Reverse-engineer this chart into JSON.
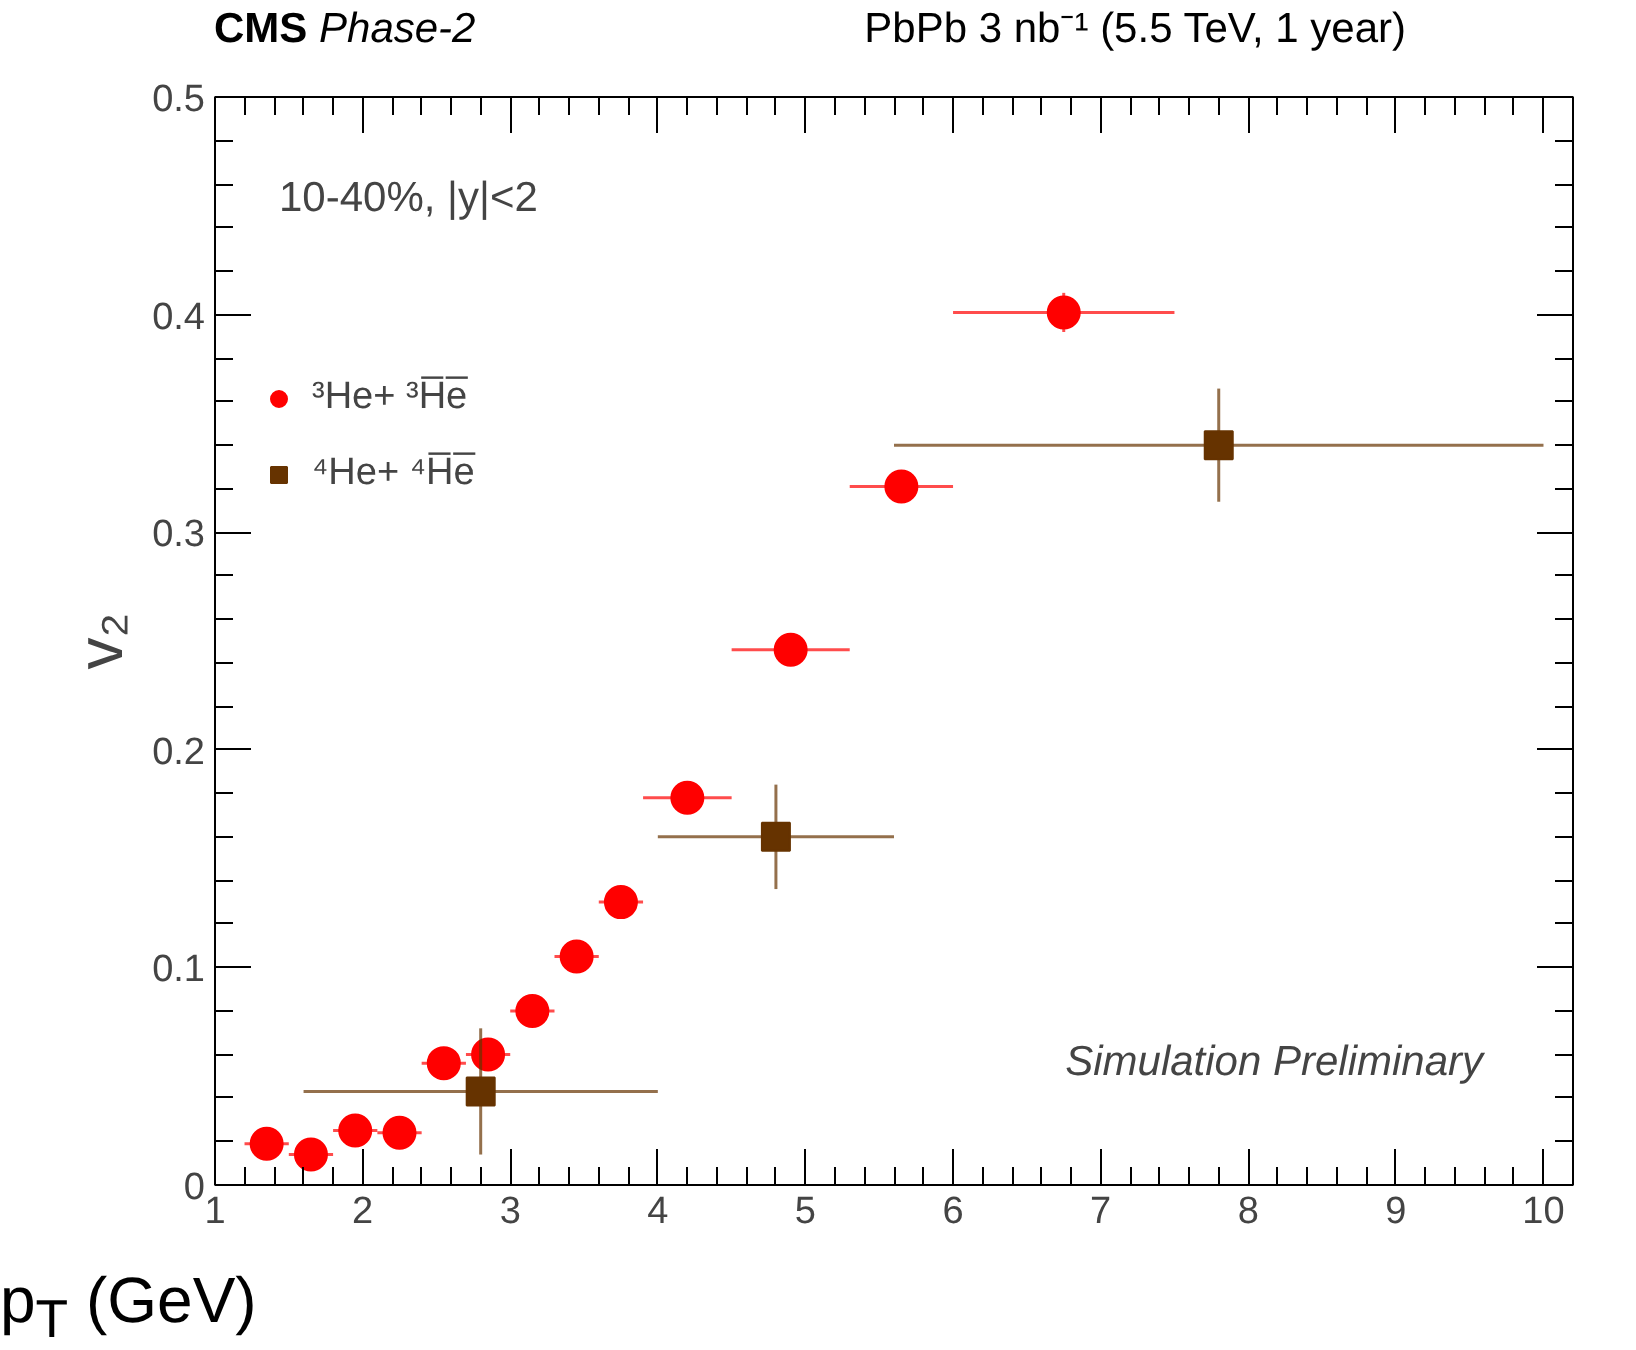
{
  "chart_data": {
    "type": "scatter",
    "title": "CMS Phase-2",
    "subtitle": "PbPb 3 nb⁻¹ (5.5 TeV, 1 year)",
    "xlabel": "p$_{T}$ (GeV)",
    "ylabel": "v₂",
    "annotations": [
      "10-40%, |y|<2",
      "Simulation Preliminary"
    ],
    "xlim": [
      1,
      10.2
    ],
    "ylim": [
      0,
      0.5
    ],
    "xticks": [
      1,
      2,
      3,
      4,
      5,
      6,
      7,
      8,
      9,
      10
    ],
    "yticks": [
      0,
      0.1,
      0.2,
      0.3,
      0.4,
      0.5
    ],
    "grid": false,
    "legend": "top left",
    "series": [
      {
        "name": "³He+ ³H̅e̅",
        "color": "#ff0000",
        "marker": "circle",
        "x": [
          1.35,
          1.65,
          1.95,
          2.25,
          2.55,
          2.85,
          3.15,
          3.45,
          3.75,
          4.2,
          4.9,
          5.65,
          6.75
        ],
        "values": [
          0.019,
          0.014,
          0.025,
          0.024,
          0.056,
          0.06,
          0.08,
          0.105,
          0.13,
          0.178,
          0.246,
          0.321,
          0.401
        ],
        "xerrors": [
          0.15,
          0.15,
          0.15,
          0.15,
          0.15,
          0.15,
          0.15,
          0.15,
          0.15,
          0.3,
          0.4,
          0.35,
          0.75
        ],
        "errors": [
          0.006,
          0.004,
          0.003,
          0.003,
          0.003,
          0.003,
          0.003,
          0.003,
          0.003,
          0.003,
          0.003,
          0.004,
          0.009
        ]
      },
      {
        "name": "⁴He+ ⁴H̅e̅",
        "color": "#663300",
        "marker": "square",
        "x": [
          2.8,
          4.8,
          7.8
        ],
        "values": [
          0.043,
          0.16,
          0.34
        ],
        "xerrors": [
          1.2,
          0.8,
          2.2
        ],
        "errors": [
          0.029,
          0.024,
          0.026
        ]
      }
    ]
  }
}
